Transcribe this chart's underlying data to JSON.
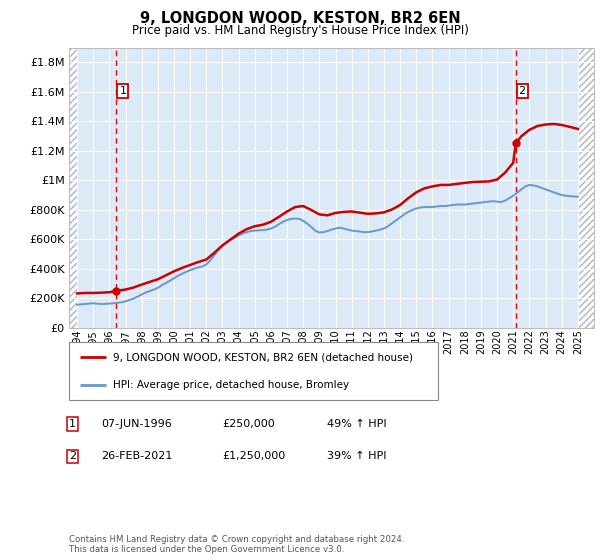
{
  "title": "9, LONGDON WOOD, KESTON, BR2 6EN",
  "subtitle": "Price paid vs. HM Land Registry's House Price Index (HPI)",
  "ylim": [
    0,
    1900000
  ],
  "yticks": [
    0,
    200000,
    400000,
    600000,
    800000,
    1000000,
    1200000,
    1400000,
    1600000,
    1800000
  ],
  "ytick_labels": [
    "£0",
    "£200K",
    "£400K",
    "£600K",
    "£800K",
    "£1M",
    "£1.2M",
    "£1.4M",
    "£1.6M",
    "£1.8M"
  ],
  "xlim_start": 1993.5,
  "xlim_end": 2026.0,
  "background_color": "#dce9f7",
  "grid_color": "#ffffff",
  "sale1_date": 1996.44,
  "sale1_price": 250000,
  "sale2_date": 2021.15,
  "sale2_price": 1250000,
  "legend_entry1": "9, LONGDON WOOD, KESTON, BR2 6EN (detached house)",
  "legend_entry2": "HPI: Average price, detached house, Bromley",
  "annotation1_label": "1",
  "annotation1_date": "07-JUN-1996",
  "annotation1_price": "£250,000",
  "annotation1_pct": "49% ↑ HPI",
  "annotation2_label": "2",
  "annotation2_date": "26-FEB-2021",
  "annotation2_price": "£1,250,000",
  "annotation2_pct": "39% ↑ HPI",
  "footer": "Contains HM Land Registry data © Crown copyright and database right 2024.\nThis data is licensed under the Open Government Licence v3.0.",
  "line_color_property": "#cc0000",
  "line_color_hpi": "#6699cc",
  "hpi_years": [
    1994,
    1994.25,
    1994.5,
    1994.75,
    1995,
    1995.25,
    1995.5,
    1995.75,
    1996,
    1996.25,
    1996.5,
    1996.75,
    1997,
    1997.25,
    1997.5,
    1997.75,
    1998,
    1998.25,
    1998.5,
    1998.75,
    1999,
    1999.25,
    1999.5,
    1999.75,
    2000,
    2000.25,
    2000.5,
    2000.75,
    2001,
    2001.25,
    2001.5,
    2001.75,
    2002,
    2002.25,
    2002.5,
    2002.75,
    2003,
    2003.25,
    2003.5,
    2003.75,
    2004,
    2004.25,
    2004.5,
    2004.75,
    2005,
    2005.25,
    2005.5,
    2005.75,
    2006,
    2006.25,
    2006.5,
    2006.75,
    2007,
    2007.25,
    2007.5,
    2007.75,
    2008,
    2008.25,
    2008.5,
    2008.75,
    2009,
    2009.25,
    2009.5,
    2009.75,
    2010,
    2010.25,
    2010.5,
    2010.75,
    2011,
    2011.25,
    2011.5,
    2011.75,
    2012,
    2012.25,
    2012.5,
    2012.75,
    2013,
    2013.25,
    2013.5,
    2013.75,
    2014,
    2014.25,
    2014.5,
    2014.75,
    2015,
    2015.25,
    2015.5,
    2015.75,
    2016,
    2016.25,
    2016.5,
    2016.75,
    2017,
    2017.25,
    2017.5,
    2017.75,
    2018,
    2018.25,
    2018.5,
    2018.75,
    2019,
    2019.25,
    2019.5,
    2019.75,
    2020,
    2020.25,
    2020.5,
    2020.75,
    2021,
    2021.25,
    2021.5,
    2021.75,
    2022,
    2022.25,
    2022.5,
    2022.75,
    2023,
    2023.25,
    2023.5,
    2023.75,
    2024,
    2024.25,
    2024.5,
    2024.75,
    2025
  ],
  "hpi_values": [
    155000,
    158000,
    160000,
    163000,
    165000,
    162000,
    160000,
    161000,
    163000,
    165000,
    168000,
    172000,
    178000,
    188000,
    198000,
    210000,
    225000,
    238000,
    248000,
    258000,
    270000,
    288000,
    302000,
    318000,
    335000,
    352000,
    365000,
    378000,
    390000,
    400000,
    408000,
    415000,
    428000,
    458000,
    492000,
    528000,
    555000,
    578000,
    595000,
    608000,
    625000,
    638000,
    648000,
    655000,
    658000,
    660000,
    662000,
    665000,
    672000,
    685000,
    702000,
    718000,
    730000,
    738000,
    740000,
    738000,
    725000,
    705000,
    682000,
    658000,
    645000,
    648000,
    655000,
    665000,
    672000,
    678000,
    672000,
    665000,
    658000,
    655000,
    652000,
    648000,
    648000,
    652000,
    658000,
    665000,
    672000,
    688000,
    708000,
    728000,
    748000,
    768000,
    785000,
    798000,
    808000,
    815000,
    818000,
    818000,
    818000,
    822000,
    825000,
    825000,
    828000,
    832000,
    835000,
    835000,
    835000,
    838000,
    842000,
    845000,
    848000,
    852000,
    855000,
    858000,
    855000,
    852000,
    862000,
    878000,
    895000,
    915000,
    938000,
    958000,
    968000,
    965000,
    958000,
    948000,
    938000,
    928000,
    918000,
    908000,
    900000,
    895000,
    892000,
    890000,
    888000
  ],
  "prop_years": [
    1994,
    1994.5,
    1995,
    1995.5,
    1996,
    1996.44,
    1997,
    1997.5,
    1998,
    1998.5,
    1999,
    1999.5,
    2000,
    2000.5,
    2001,
    2001.5,
    2002,
    2002.5,
    2003,
    2003.5,
    2004,
    2004.5,
    2005,
    2005.5,
    2006,
    2006.5,
    2007,
    2007.5,
    2008,
    2008.5,
    2009,
    2009.5,
    2010,
    2010.5,
    2011,
    2011.5,
    2012,
    2012.5,
    2013,
    2013.5,
    2014,
    2014.5,
    2015,
    2015.5,
    2016,
    2016.5,
    2017,
    2017.5,
    2018,
    2018.5,
    2019,
    2019.5,
    2020,
    2020.5,
    2021,
    2021.15,
    2021.5,
    2022,
    2022.5,
    2023,
    2023.5,
    2024,
    2024.5,
    2025
  ],
  "prop_values": [
    232000,
    235000,
    235000,
    237000,
    240000,
    250000,
    258000,
    272000,
    292000,
    310000,
    328000,
    355000,
    382000,
    405000,
    425000,
    445000,
    462000,
    508000,
    558000,
    598000,
    638000,
    668000,
    688000,
    698000,
    718000,
    752000,
    788000,
    818000,
    825000,
    798000,
    768000,
    762000,
    778000,
    785000,
    788000,
    780000,
    772000,
    775000,
    782000,
    802000,
    832000,
    878000,
    918000,
    945000,
    958000,
    968000,
    968000,
    975000,
    982000,
    988000,
    990000,
    992000,
    1005000,
    1052000,
    1118000,
    1250000,
    1298000,
    1342000,
    1368000,
    1378000,
    1382000,
    1375000,
    1362000,
    1348000
  ]
}
